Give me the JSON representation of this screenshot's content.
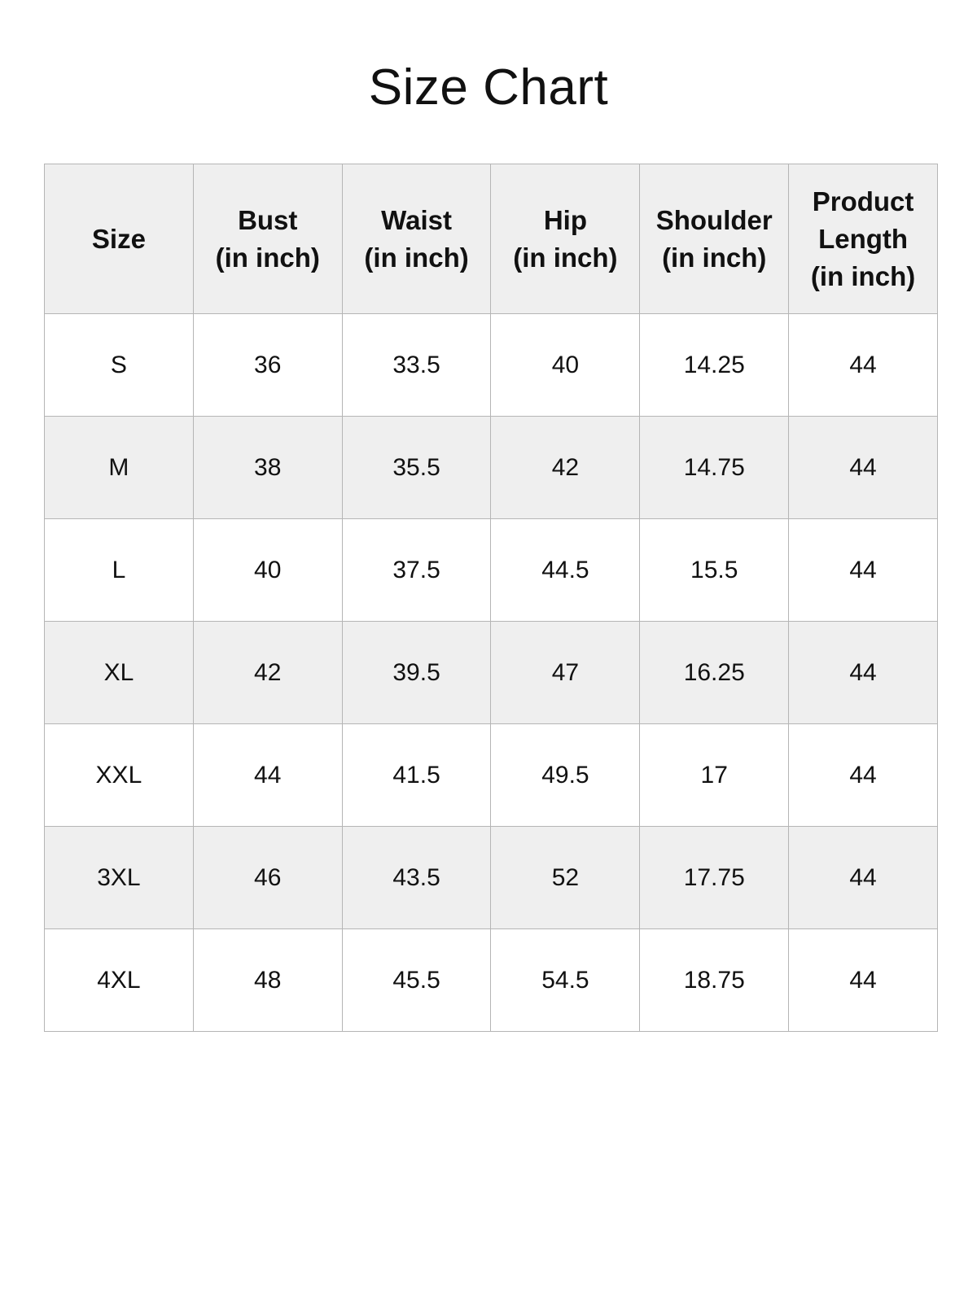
{
  "title": "Size Chart",
  "colors": {
    "header_bg": "#efefef",
    "alt_row_bg": "#efefef",
    "border": "#b5b5b5"
  },
  "headers": [
    [
      "Size"
    ],
    [
      "Bust",
      "(in inch)"
    ],
    [
      "Waist",
      "(in inch)"
    ],
    [
      "Hip",
      "(in inch)"
    ],
    [
      "Shoulder",
      "(in inch)"
    ],
    [
      "Product",
      "Length",
      "(in inch)"
    ]
  ],
  "rows": [
    [
      "S",
      "36",
      "33.5",
      "40",
      "14.25",
      "44"
    ],
    [
      "M",
      "38",
      "35.5",
      "42",
      "14.75",
      "44"
    ],
    [
      "L",
      "40",
      "37.5",
      "44.5",
      "15.5",
      "44"
    ],
    [
      "XL",
      "42",
      "39.5",
      "47",
      "16.25",
      "44"
    ],
    [
      "XXL",
      "44",
      "41.5",
      "49.5",
      "17",
      "44"
    ],
    [
      "3XL",
      "46",
      "43.5",
      "52",
      "17.75",
      "44"
    ],
    [
      "4XL",
      "48",
      "45.5",
      "54.5",
      "18.75",
      "44"
    ]
  ]
}
